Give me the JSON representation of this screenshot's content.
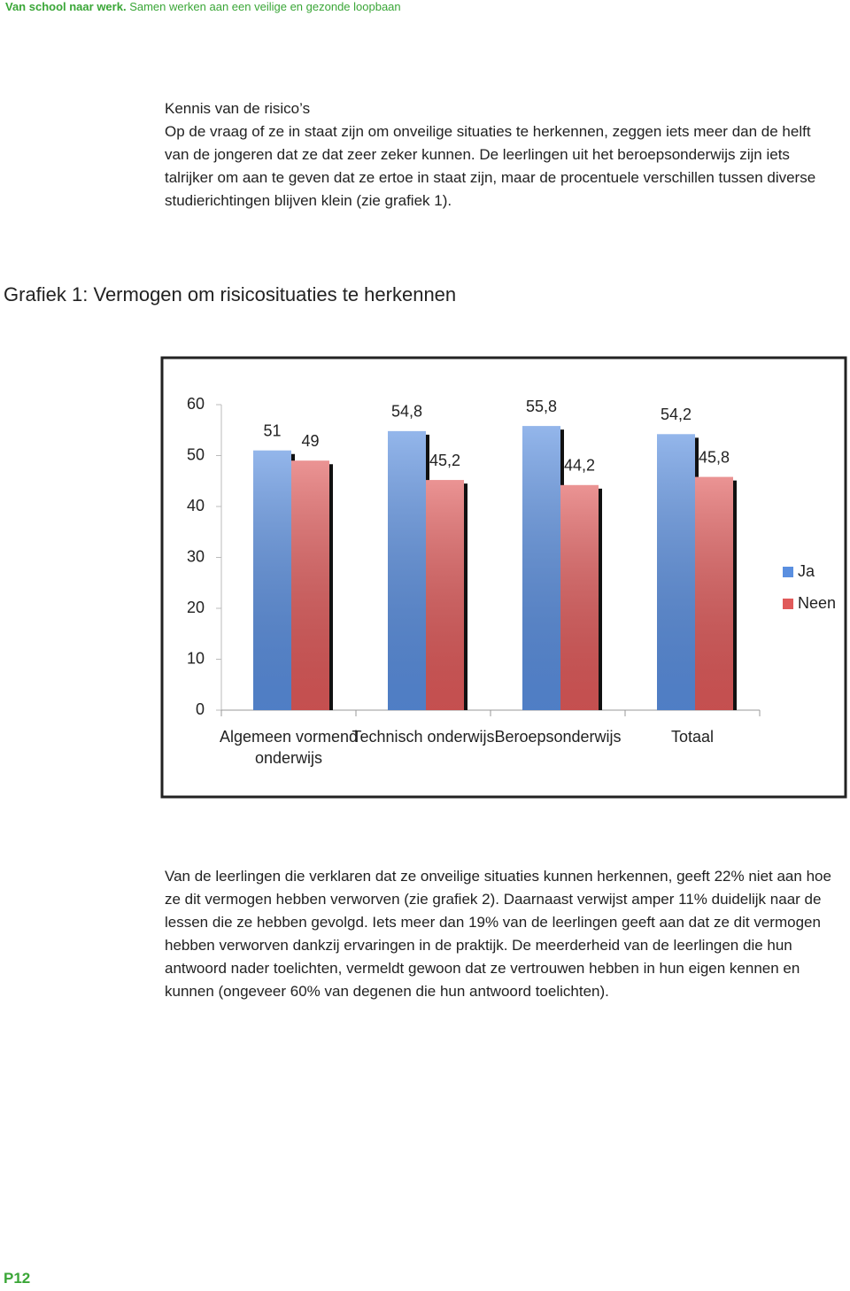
{
  "header": {
    "title": "Van school naar werk.",
    "subtitle": "Samen werken aan een veilige en gezonde loopbaan"
  },
  "section": {
    "heading": "Kennis van de risico’s",
    "paragraph": "Op de vraag of ze in staat zijn om onveilige situaties te herkennen, zeggen iets meer dan de helft van de jongeren dat ze dat zeer zeker kunnen. De leerlingen uit het beroepsonderwijs zijn iets talrijker om aan te geven dat ze ertoe in staat zijn, maar de procentuele verschillen tussen diverse studierichtingen blijven klein (zie grafiek 1)."
  },
  "chart_data": {
    "type": "bar",
    "title": "Grafiek 1: Vermogen om risicosituaties te herkennen",
    "categories": [
      "Algemeen vormend onderwijs",
      "Technisch onderwijs",
      "Beroepsonderwijs",
      "Totaal"
    ],
    "series": [
      {
        "name": "Ja",
        "color": "#5a8fe0",
        "values": [
          51,
          54.8,
          55.8,
          54.2
        ],
        "value_labels": [
          "51",
          "54,8",
          "55,8",
          "54,2"
        ]
      },
      {
        "name": "Neen",
        "color": "#e05a5a",
        "values": [
          49,
          45.2,
          44.2,
          45.8
        ],
        "value_labels": [
          "49",
          "45,2",
          "44,2",
          "45,8"
        ]
      }
    ],
    "ylim": [
      0,
      60
    ],
    "yticks": [
      0,
      10,
      20,
      30,
      40,
      50,
      60
    ],
    "grid": false,
    "legend": "right"
  },
  "body": {
    "paragraph": "Van de leerlingen die verklaren dat ze onveilige situaties kunnen herkennen, geeft 22% niet aan hoe ze dit vermogen hebben verworven (zie grafiek 2). Daarnaast verwijst amper 11% duidelijk naar de lessen die ze hebben gevolgd. Iets meer dan 19% van de leerlingen geeft aan dat ze dit vermogen hebben verworven dankzij ervaringen in de praktijk. De meerderheid van de leerlingen die hun antwoord nader toelichten, vermeldt gewoon dat ze vertrouwen hebben in hun eigen kennen en kunnen (ongeveer 60% van degenen die hun antwoord toelichten)."
  },
  "footer": {
    "page": "P12"
  }
}
